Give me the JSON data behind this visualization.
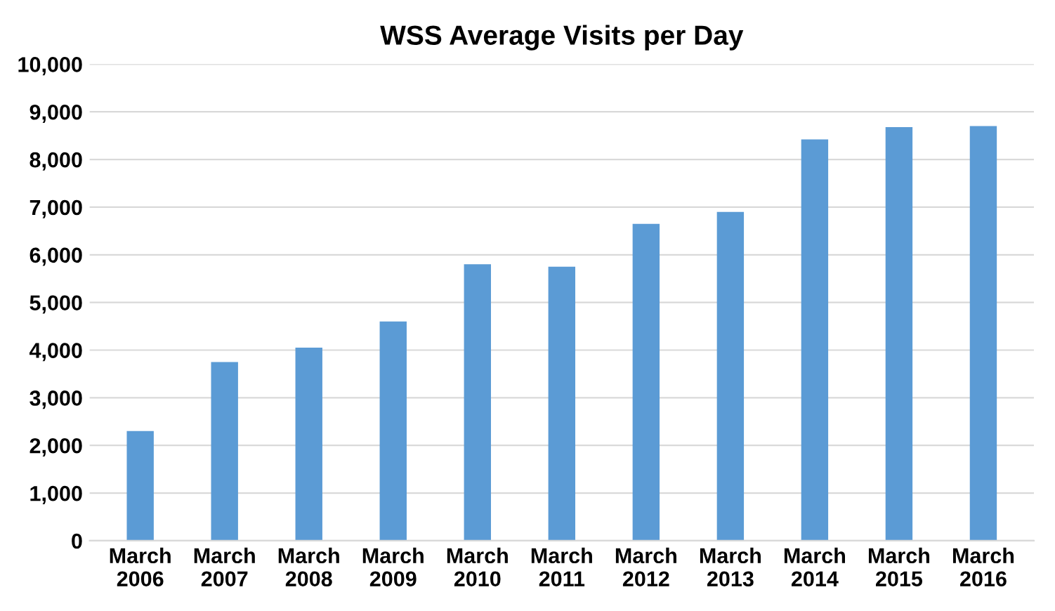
{
  "chart_data": {
    "type": "bar",
    "title": "WSS Average Visits per Day",
    "categories": [
      "March\n2006",
      "March\n2007",
      "March\n2008",
      "March\n2009",
      "March\n2010",
      "March\n2011",
      "March\n2012",
      "March\n2013",
      "March\n2014",
      "March\n2015",
      "March\n2016"
    ],
    "values": [
      2300,
      3750,
      4050,
      4600,
      5800,
      5750,
      6650,
      6900,
      8420,
      8680,
      8700
    ],
    "color": "#5b9bd5",
    "ylim": [
      0,
      10000
    ],
    "yticks": [
      {
        "value": 0,
        "label": "0"
      },
      {
        "value": 1000,
        "label": "1,000"
      },
      {
        "value": 2000,
        "label": "2,000"
      },
      {
        "value": 3000,
        "label": "3,000"
      },
      {
        "value": 4000,
        "label": "4,000"
      },
      {
        "value": 5000,
        "label": "5,000"
      },
      {
        "value": 6000,
        "label": "6,000"
      },
      {
        "value": 7000,
        "label": "7,000"
      },
      {
        "value": 8000,
        "label": "8,000"
      },
      {
        "value": 9000,
        "label": "9,000"
      },
      {
        "value": 10000,
        "label": "10,000"
      }
    ],
    "grid": "y"
  }
}
